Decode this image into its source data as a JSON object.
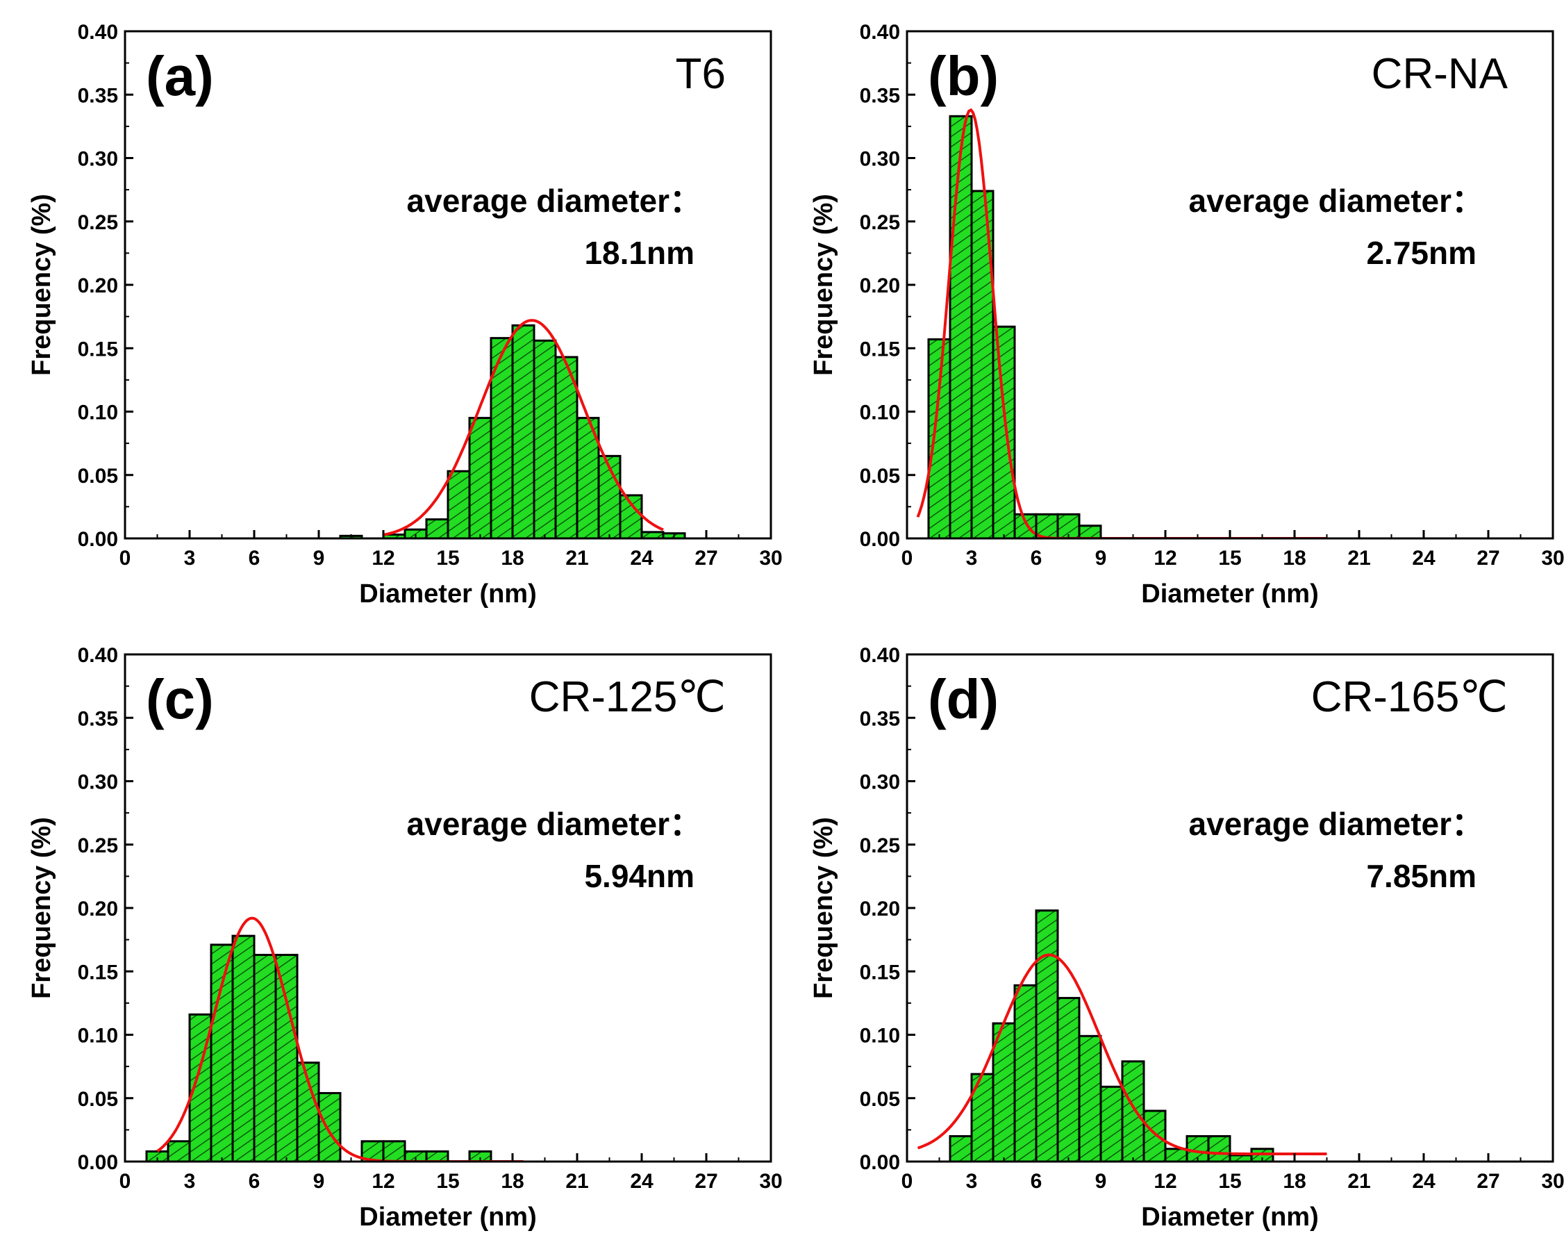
{
  "chart_data": [
    {
      "type": "bar",
      "panel_label": "(a)",
      "condition": "T6",
      "annotation_label": "average diameter：",
      "annotation_value": "18.1nm",
      "xlabel": "Diameter (nm)",
      "ylabel": "Frequency (%)",
      "xlim": [
        0,
        30
      ],
      "ylim": [
        0,
        0.4
      ],
      "xticks": [
        0,
        3,
        6,
        9,
        12,
        15,
        18,
        21,
        24,
        27,
        30
      ],
      "yticks": [
        0.0,
        0.05,
        0.1,
        0.15,
        0.2,
        0.25,
        0.3,
        0.35,
        0.4
      ],
      "bin_width": 1,
      "bins": [
        {
          "x0": 10,
          "value": 0.002
        },
        {
          "x0": 11,
          "value": 0.0
        },
        {
          "x0": 12,
          "value": 0.003
        },
        {
          "x0": 13,
          "value": 0.007
        },
        {
          "x0": 14,
          "value": 0.015
        },
        {
          "x0": 15,
          "value": 0.053
        },
        {
          "x0": 16,
          "value": 0.095
        },
        {
          "x0": 17,
          "value": 0.158
        },
        {
          "x0": 18,
          "value": 0.168
        },
        {
          "x0": 19,
          "value": 0.156
        },
        {
          "x0": 20,
          "value": 0.143
        },
        {
          "x0": 21,
          "value": 0.095
        },
        {
          "x0": 22,
          "value": 0.065
        },
        {
          "x0": 23,
          "value": 0.034
        },
        {
          "x0": 24,
          "value": 0.005
        },
        {
          "x0": 25,
          "value": 0.004
        }
      ],
      "fit": {
        "type": "gaussian",
        "mean": 18.9,
        "sigma": 2.4,
        "peak": 0.172,
        "x_range": [
          12,
          25
        ]
      }
    },
    {
      "type": "bar",
      "panel_label": "(b)",
      "condition": "CR-NA",
      "annotation_label": "average diameter：",
      "annotation_value": "2.75nm",
      "xlabel": "Diameter (nm)",
      "ylabel": "Frequency (%)",
      "xlim": [
        0,
        30
      ],
      "ylim": [
        0,
        0.4
      ],
      "xticks": [
        0,
        3,
        6,
        9,
        12,
        15,
        18,
        21,
        24,
        27,
        30
      ],
      "yticks": [
        0.0,
        0.05,
        0.1,
        0.15,
        0.2,
        0.25,
        0.3,
        0.35,
        0.4
      ],
      "bin_width": 1,
      "bins": [
        {
          "x0": 1,
          "value": 0.157
        },
        {
          "x0": 2,
          "value": 0.333
        },
        {
          "x0": 3,
          "value": 0.274
        },
        {
          "x0": 4,
          "value": 0.167
        },
        {
          "x0": 5,
          "value": 0.019
        },
        {
          "x0": 6,
          "value": 0.019
        },
        {
          "x0": 7,
          "value": 0.019
        },
        {
          "x0": 8,
          "value": 0.01
        }
      ],
      "fit": {
        "type": "gaussian",
        "mean": 2.95,
        "sigma": 1.0,
        "peak": 0.338,
        "x_range": [
          0.5,
          19.5
        ]
      }
    },
    {
      "type": "bar",
      "panel_label": "(c)",
      "condition": "CR-125℃",
      "annotation_label": "average diameter：",
      "annotation_value": "5.94nm",
      "xlabel": "Diameter (nm)",
      "ylabel": "Frequency (%)",
      "xlim": [
        0,
        30
      ],
      "ylim": [
        0,
        0.4
      ],
      "xticks": [
        0,
        3,
        6,
        9,
        12,
        15,
        18,
        21,
        24,
        27,
        30
      ],
      "yticks": [
        0.0,
        0.05,
        0.1,
        0.15,
        0.2,
        0.25,
        0.3,
        0.35,
        0.4
      ],
      "bin_width": 1,
      "bins": [
        {
          "x0": 1,
          "value": 0.008
        },
        {
          "x0": 2,
          "value": 0.016
        },
        {
          "x0": 3,
          "value": 0.116
        },
        {
          "x0": 4,
          "value": 0.171
        },
        {
          "x0": 5,
          "value": 0.178
        },
        {
          "x0": 6,
          "value": 0.163
        },
        {
          "x0": 7,
          "value": 0.163
        },
        {
          "x0": 8,
          "value": 0.078
        },
        {
          "x0": 9,
          "value": 0.054
        },
        {
          "x0": 11,
          "value": 0.016
        },
        {
          "x0": 12,
          "value": 0.016
        },
        {
          "x0": 13,
          "value": 0.008
        },
        {
          "x0": 14,
          "value": 0.008
        },
        {
          "x0": 16,
          "value": 0.008
        }
      ],
      "fit": {
        "type": "gaussian",
        "mean": 5.9,
        "sigma": 1.75,
        "peak": 0.192,
        "x_range": [
          1.5,
          18.5
        ]
      }
    },
    {
      "type": "bar",
      "panel_label": "(d)",
      "condition": "CR-165℃",
      "annotation_label": "average diameter：",
      "annotation_value": "7.85nm",
      "xlabel": "Diameter (nm)",
      "ylabel": "Frequency (%)",
      "xlim": [
        0,
        30
      ],
      "ylim": [
        0,
        0.4
      ],
      "xticks": [
        0,
        3,
        6,
        9,
        12,
        15,
        18,
        21,
        24,
        27,
        30
      ],
      "yticks": [
        0.0,
        0.05,
        0.1,
        0.15,
        0.2,
        0.25,
        0.3,
        0.35,
        0.4
      ],
      "bin_width": 1,
      "bins": [
        {
          "x0": 2,
          "value": 0.02
        },
        {
          "x0": 3,
          "value": 0.069
        },
        {
          "x0": 4,
          "value": 0.109
        },
        {
          "x0": 5,
          "value": 0.139
        },
        {
          "x0": 6,
          "value": 0.198
        },
        {
          "x0": 7,
          "value": 0.129
        },
        {
          "x0": 8,
          "value": 0.099
        },
        {
          "x0": 9,
          "value": 0.059
        },
        {
          "x0": 10,
          "value": 0.079
        },
        {
          "x0": 11,
          "value": 0.04
        },
        {
          "x0": 12,
          "value": 0.01
        },
        {
          "x0": 13,
          "value": 0.02
        },
        {
          "x0": 14,
          "value": 0.02
        },
        {
          "x0": 15,
          "value": 0.005
        },
        {
          "x0": 16,
          "value": 0.01
        }
      ],
      "fit": {
        "type": "gaussian",
        "mean": 6.6,
        "sigma": 2.3,
        "peak": 0.163,
        "offset": 0.006,
        "x_range": [
          0.5,
          19.5
        ]
      }
    }
  ],
  "colors": {
    "bar_fill": "#22dd22",
    "bar_hatch": "#0a5a0a",
    "bar_stroke": "#000000",
    "fit_line": "#ee1111",
    "axis": "#000000"
  }
}
